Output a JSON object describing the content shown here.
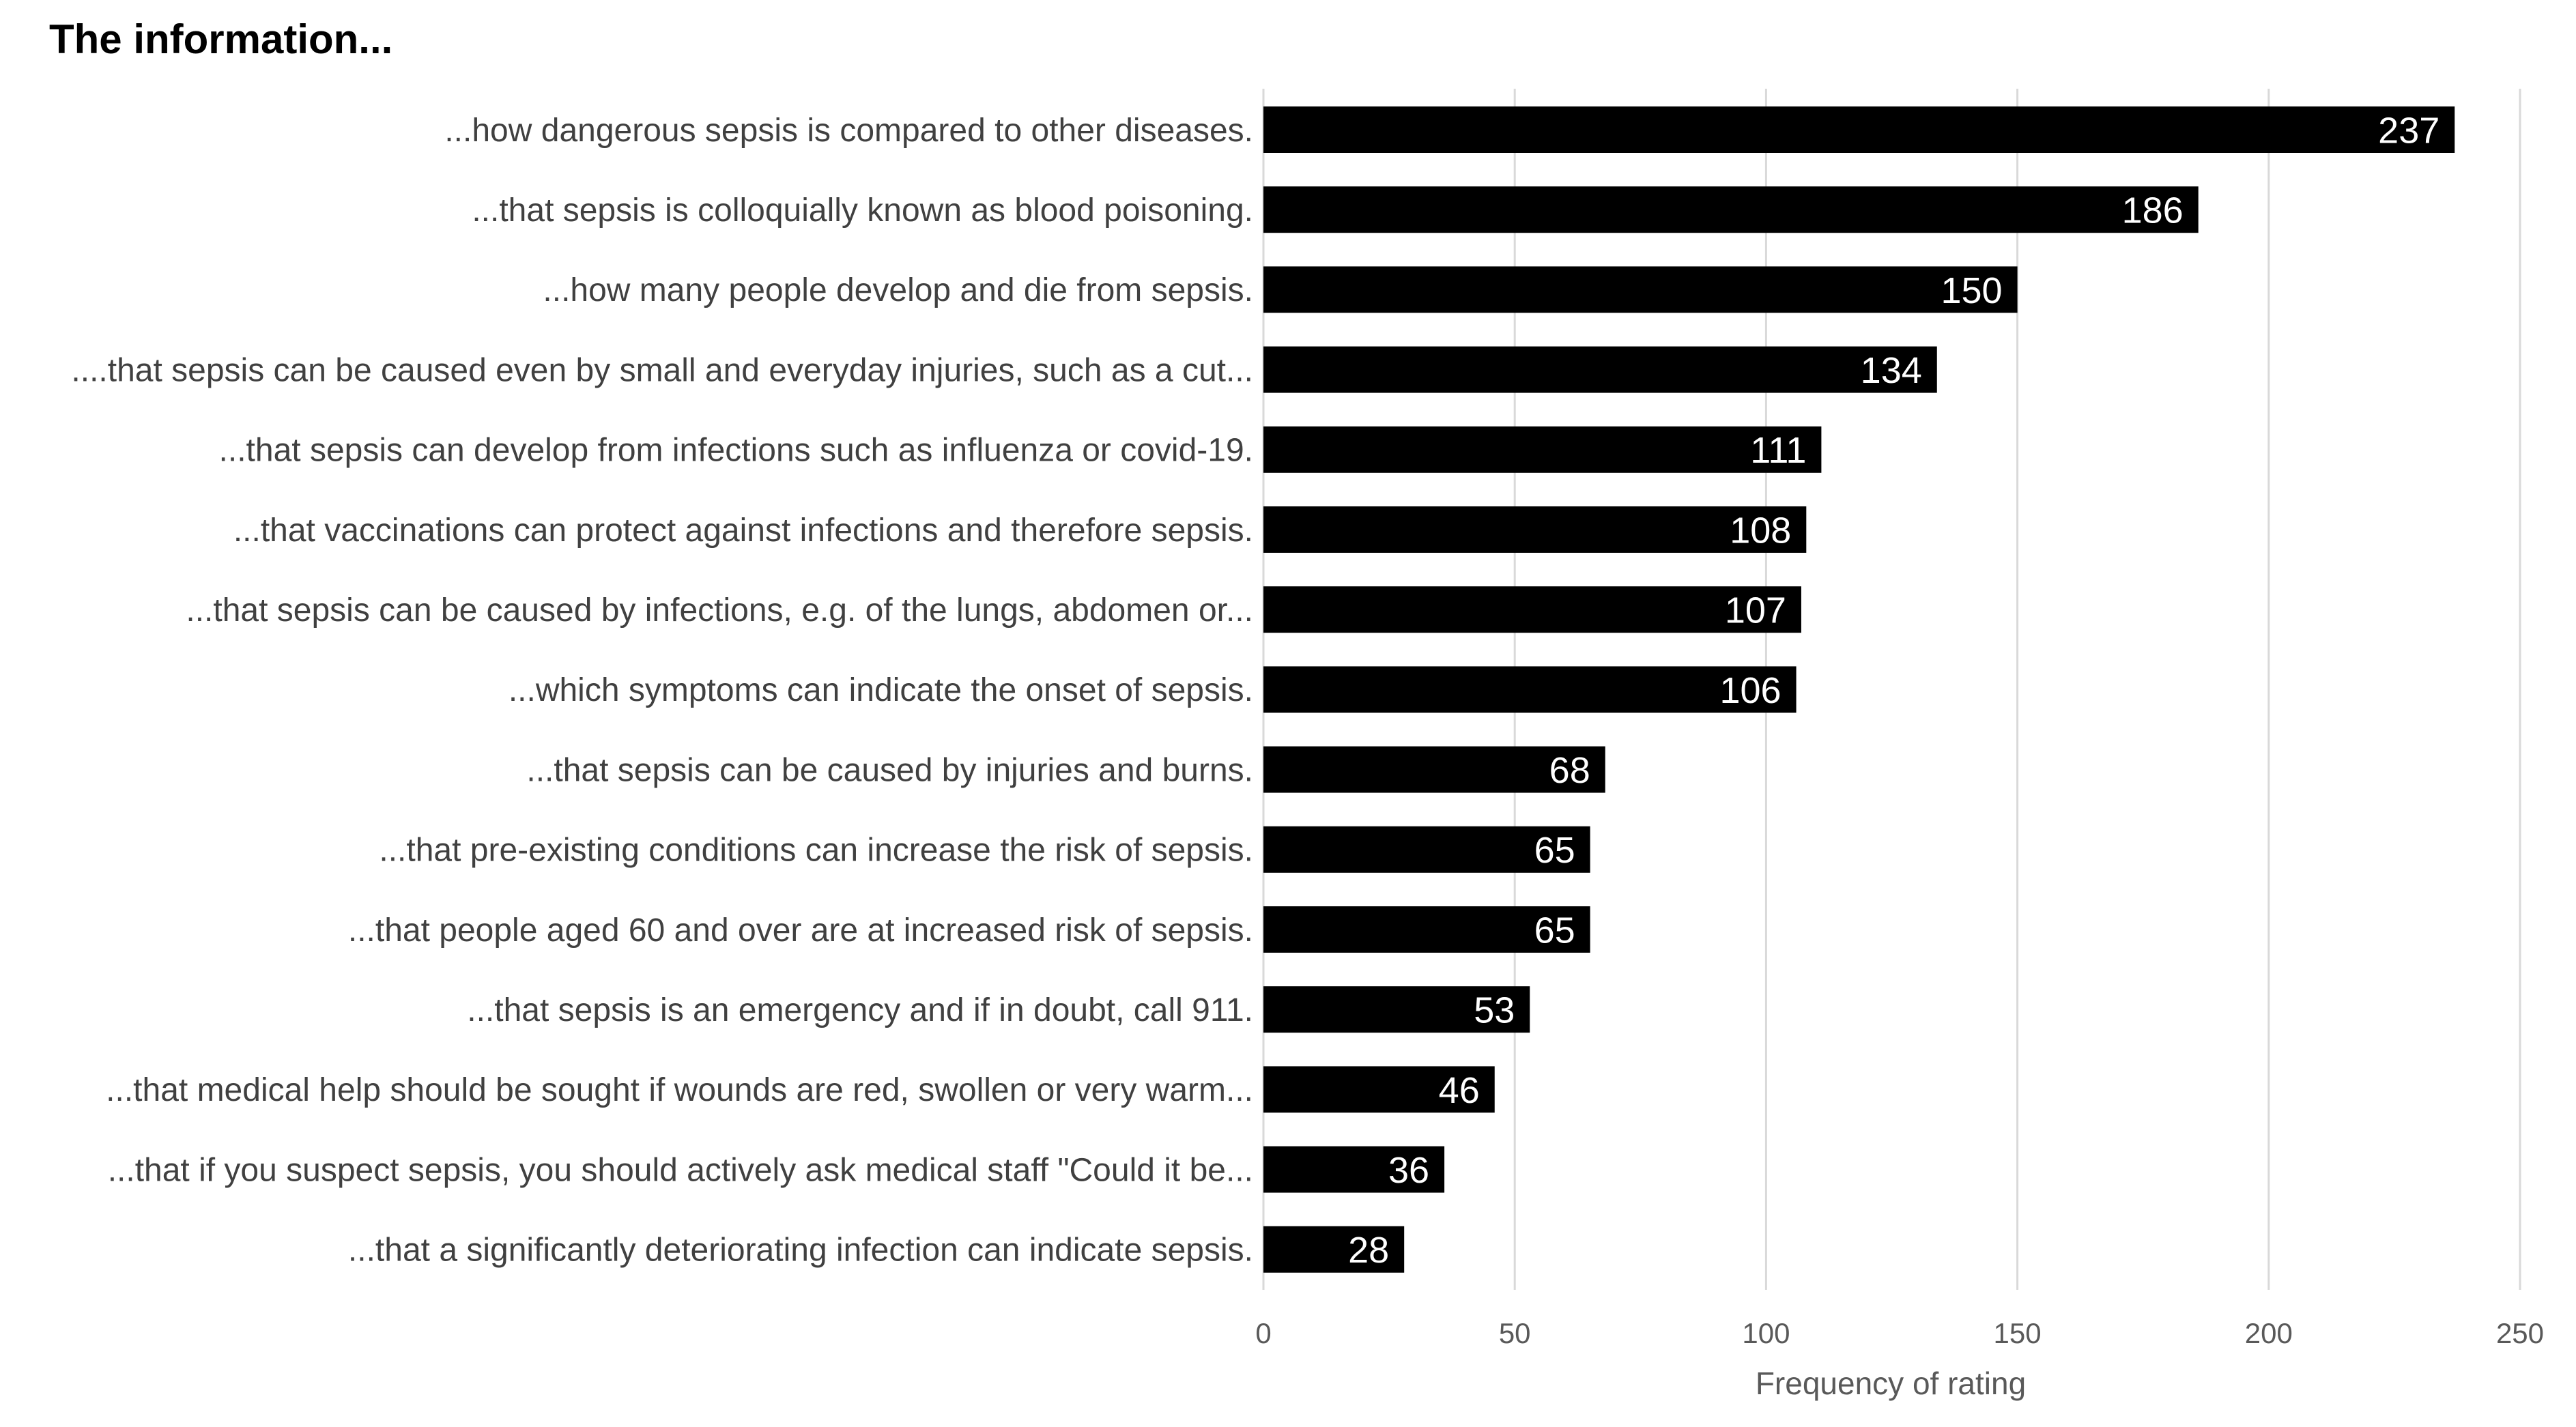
{
  "chart_data": {
    "type": "bar",
    "orientation": "horizontal",
    "title": "The information...",
    "xlabel": "Frequency of rating",
    "ylabel": "",
    "xlim": [
      0,
      250
    ],
    "xticks": [
      0,
      50,
      100,
      150,
      200,
      250
    ],
    "grid": true,
    "legend": "none",
    "categories": [
      "...how dangerous sepsis is compared to other diseases.",
      "...that sepsis is colloquially known as blood poisoning.",
      "...how many people develop and die from sepsis.",
      "....that sepsis can be caused even by small and everyday injuries, such as a cut...",
      "...that sepsis can develop from infections such as influenza or covid-19.",
      "...that vaccinations can protect against infections and therefore sepsis.",
      "...that sepsis can be caused by infections, e.g. of the lungs, abdomen or...",
      "...which symptoms can indicate the onset of sepsis.",
      "...that sepsis can be caused by injuries and burns.",
      "...that pre-existing conditions can increase the risk of sepsis.",
      "...that people aged 60 and over are at increased risk of sepsis.",
      "...that sepsis is an emergency and if in doubt, call 911.",
      "...that medical help should be sought if wounds are red, swollen or very warm...",
      "...that if you suspect sepsis, you should actively ask medical staff \"Could it be...",
      "...that a significantly deteriorating infection can indicate sepsis."
    ],
    "values": [
      237,
      186,
      150,
      134,
      111,
      108,
      107,
      106,
      68,
      65,
      65,
      53,
      46,
      36,
      28
    ],
    "colors": {
      "bar": "#000000",
      "bar_label": "#ffffff",
      "grid": "#d9d9d9",
      "category_text": "#404040",
      "axis_text": "#595959",
      "title_text": "#000000"
    }
  }
}
